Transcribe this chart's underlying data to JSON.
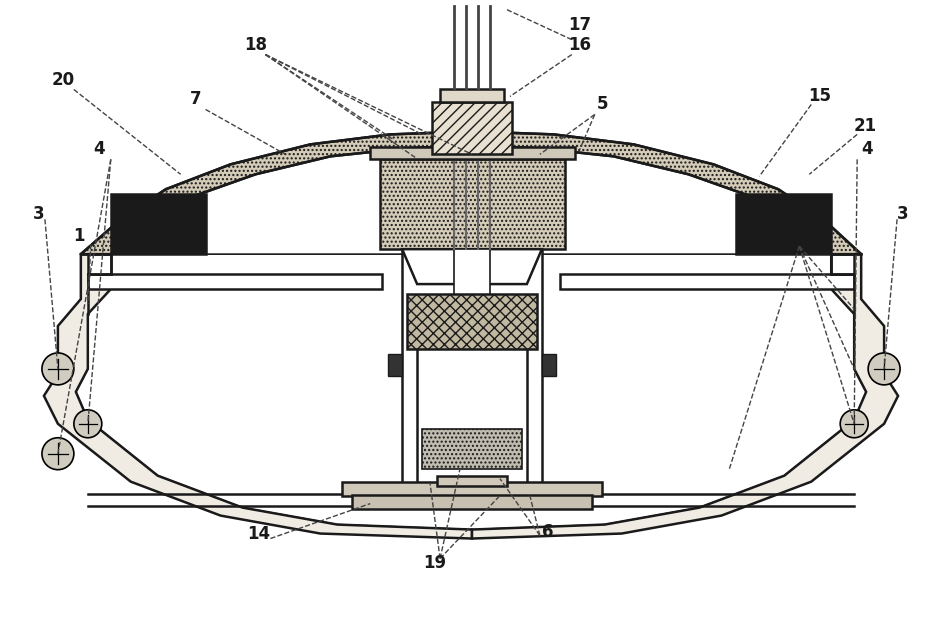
{
  "fig_width": 9.44,
  "fig_height": 6.44,
  "dpi": 100,
  "bg_color": "#ffffff",
  "lc": "#1a1a1a",
  "dotted_fill": "#d4cbb8",
  "light_fill": "#f0ece4",
  "dark_fill": "#1a1a1a",
  "white_fill": "#ffffff",
  "mesh_fill": "#c8bfaa",
  "label_fontsize": 12,
  "label_color": "#1a1a1a"
}
